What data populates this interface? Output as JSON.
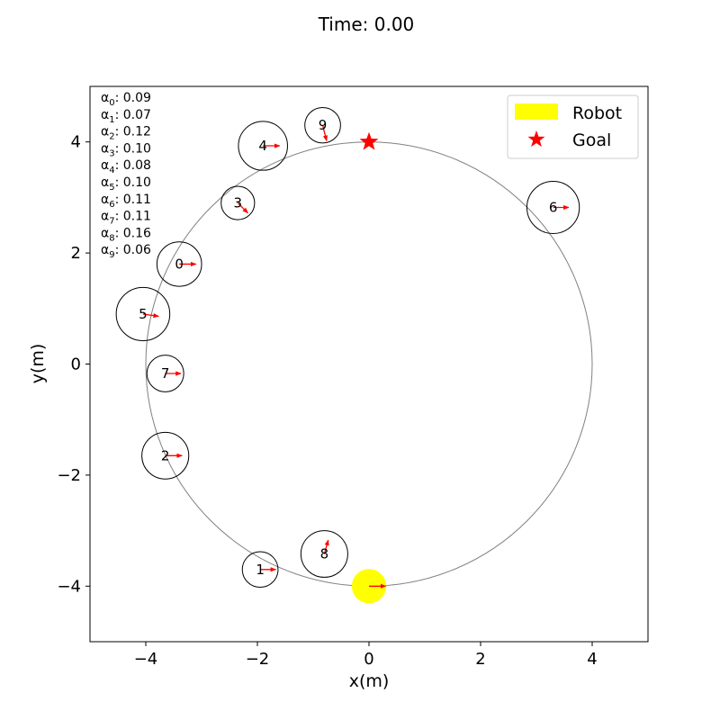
{
  "title": "Time: 0.00",
  "chart_data": {
    "type": "scatter",
    "xlabel": "x(m)",
    "ylabel": "y(m)",
    "xlim": [
      -5,
      5
    ],
    "ylim": [
      -5,
      5
    ],
    "xticks": [
      -4,
      -2,
      0,
      2,
      4
    ],
    "yticks": [
      -4,
      -2,
      0,
      2,
      4
    ],
    "xtick_labels": [
      "−4",
      "−2",
      "0",
      "2",
      "4"
    ],
    "ytick_labels": [
      "−4",
      "−2",
      "0",
      "2",
      "4"
    ],
    "grid": false,
    "legend": {
      "placement": "top-right",
      "entries": [
        {
          "label": "Robot",
          "marker": "yellow-patch",
          "color": "#ffff00"
        },
        {
          "label": "Goal",
          "marker": "red-star",
          "color": "#ff0000"
        }
      ]
    },
    "path_circle": {
      "cx": 0,
      "cy": 0,
      "r": 4,
      "color": "#808080"
    },
    "robot": {
      "x": 0,
      "y": -4,
      "r": 0.3,
      "vx": 0.3,
      "vy": 0,
      "color": "#ffff00"
    },
    "goal": {
      "x": 0,
      "y": 4,
      "color": "#ff0000"
    },
    "humans": [
      {
        "id": "0",
        "x": -3.4,
        "y": 1.8,
        "r": 0.4,
        "vx": 0.3,
        "vy": 0.0
      },
      {
        "id": "1",
        "x": -1.95,
        "y": -3.7,
        "r": 0.32,
        "vx": 0.28,
        "vy": 0.0
      },
      {
        "id": "2",
        "x": -3.65,
        "y": -1.65,
        "r": 0.42,
        "vx": 0.3,
        "vy": 0.0
      },
      {
        "id": "3",
        "x": -2.35,
        "y": 2.9,
        "r": 0.3,
        "vx": 0.18,
        "vy": -0.18
      },
      {
        "id": "4",
        "x": -1.9,
        "y": 3.93,
        "r": 0.44,
        "vx": 0.3,
        "vy": 0.0
      },
      {
        "id": "5",
        "x": -4.05,
        "y": 0.9,
        "r": 0.48,
        "vx": 0.28,
        "vy": -0.04
      },
      {
        "id": "6",
        "x": 3.3,
        "y": 2.82,
        "r": 0.47,
        "vx": 0.28,
        "vy": 0.0
      },
      {
        "id": "7",
        "x": -3.65,
        "y": -0.17,
        "r": 0.33,
        "vx": 0.28,
        "vy": 0.0
      },
      {
        "id": "8",
        "x": -0.8,
        "y": -3.42,
        "r": 0.42,
        "vx": 0.07,
        "vy": 0.25
      },
      {
        "id": "9",
        "x": -0.83,
        "y": 4.3,
        "r": 0.32,
        "vx": 0.07,
        "vy": -0.28
      }
    ],
    "arrow_color": "#ff0000",
    "alphas": [
      {
        "symbol": "α",
        "sub": "0",
        "value": "0.09"
      },
      {
        "symbol": "α",
        "sub": "1",
        "value": "0.07"
      },
      {
        "symbol": "α",
        "sub": "2",
        "value": "0.12"
      },
      {
        "symbol": "α",
        "sub": "3",
        "value": "0.10"
      },
      {
        "symbol": "α",
        "sub": "4",
        "value": "0.08"
      },
      {
        "symbol": "α",
        "sub": "5",
        "value": "0.10"
      },
      {
        "symbol": "α",
        "sub": "6",
        "value": "0.11"
      },
      {
        "symbol": "α",
        "sub": "7",
        "value": "0.11"
      },
      {
        "symbol": "α",
        "sub": "8",
        "value": "0.16"
      },
      {
        "symbol": "α",
        "sub": "9",
        "value": "0.06"
      }
    ]
  }
}
